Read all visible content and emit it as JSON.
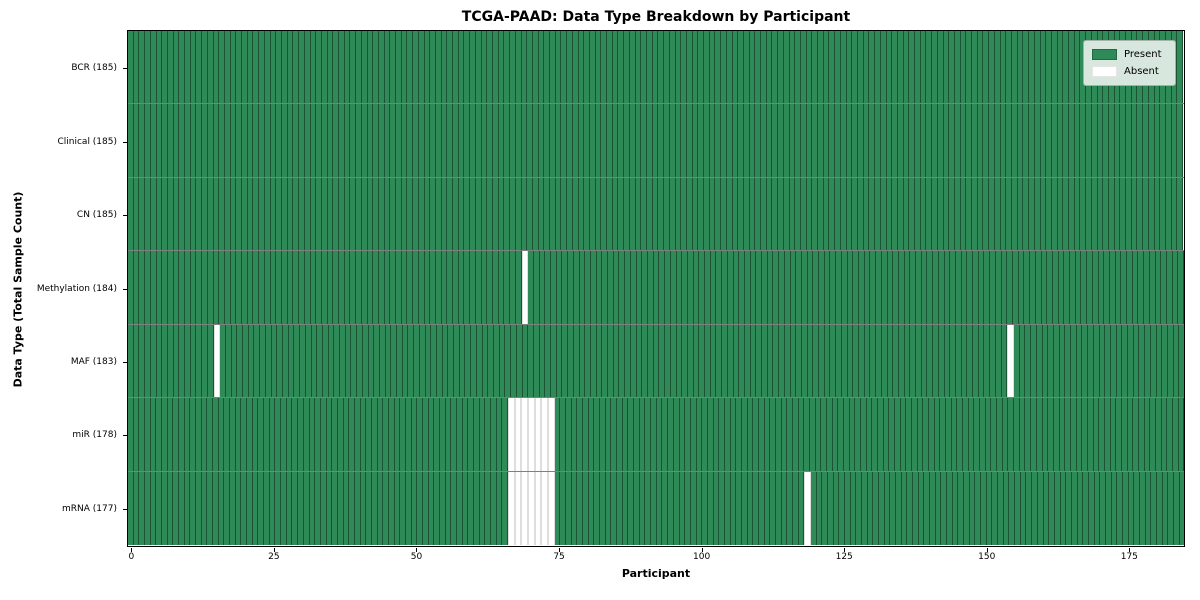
{
  "figure": {
    "title": "TCGA-PAAD: Data Type Breakdown by Participant"
  },
  "chart_data": {
    "type": "heatmap",
    "title": "TCGA-PAAD: Data Type Breakdown by Participant",
    "xlabel": "Participant",
    "ylabel": "Data Type (Total Sample Count)",
    "n_participants": 185,
    "xlim": [
      -0.5,
      184.5
    ],
    "x_ticks": [
      0,
      25,
      50,
      75,
      100,
      125,
      150,
      175
    ],
    "grid": false,
    "legend_position": "upper right",
    "legend": {
      "entries": [
        {
          "label": "Present",
          "color": "#2e8b57"
        },
        {
          "label": "Absent",
          "color": "#ffffff"
        }
      ]
    },
    "colors": {
      "present": "#2e8b57",
      "absent": "#ffffff"
    },
    "rows": [
      {
        "label": "BCR (185)",
        "data_type": "BCR",
        "total_samples": 185,
        "absent_participants": []
      },
      {
        "label": "Clinical (185)",
        "data_type": "Clinical",
        "total_samples": 185,
        "absent_participants": []
      },
      {
        "label": "CN (185)",
        "data_type": "CN",
        "total_samples": 185,
        "absent_participants": []
      },
      {
        "label": "Methylation (184)",
        "data_type": "Methylation",
        "total_samples": 184,
        "absent_participants": [
          69
        ]
      },
      {
        "label": "MAF (183)",
        "data_type": "MAF",
        "total_samples": 183,
        "absent_participants": [
          15,
          154
        ]
      },
      {
        "label": "miR (178)",
        "data_type": "miR",
        "total_samples": 178,
        "absent_participants": [
          67,
          68,
          69,
          70,
          71,
          72,
          73
        ]
      },
      {
        "label": "mRNA (177)",
        "data_type": "mRNA",
        "total_samples": 177,
        "absent_participants": [
          67,
          68,
          69,
          70,
          71,
          72,
          73,
          118
        ]
      }
    ]
  }
}
